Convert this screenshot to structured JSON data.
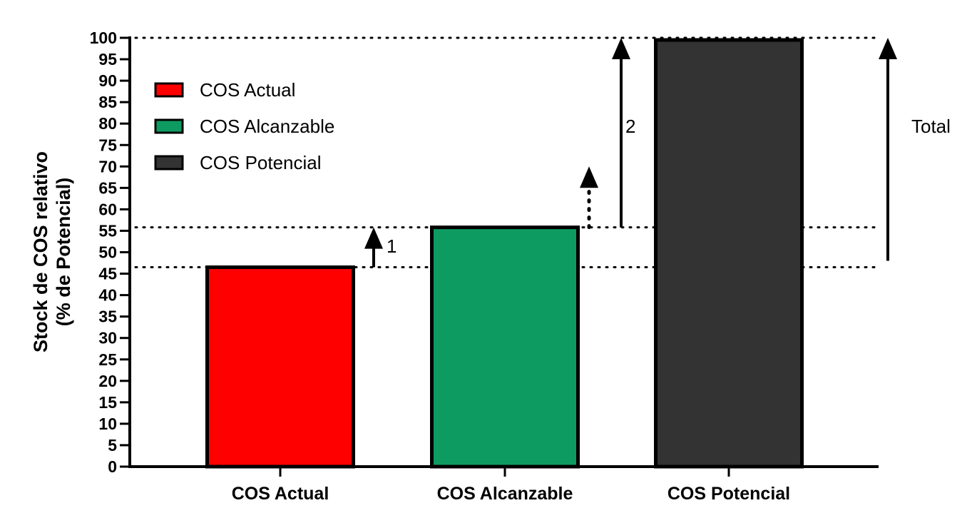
{
  "chart_data": {
    "type": "bar",
    "categories": [
      "COS Actual",
      "COS Alcanzable",
      "COS Potencial"
    ],
    "values": [
      46.5,
      55.8,
      99.5
    ],
    "colors": [
      "#ff0000",
      "#0e9b62",
      "#333333"
    ],
    "ylabel_lines": [
      "Stock de COS relativo",
      "(% de Potencial)"
    ],
    "ylim": [
      0,
      100
    ],
    "y_ticks": [
      "0",
      "5",
      "10",
      "15",
      "20",
      "25",
      "30",
      "35",
      "40",
      "45",
      "50",
      "55",
      "60",
      "65",
      "70",
      "75",
      "80",
      "85",
      "90",
      "95",
      "100"
    ],
    "legend": {
      "placement": "top-left",
      "entries": [
        {
          "label": "COS Actual",
          "color": "#ff0000"
        },
        {
          "label": "COS Alcanzable",
          "color": "#0e9b62"
        },
        {
          "label": "COS Potencial",
          "color": "#333333"
        }
      ]
    },
    "reference_lines": [
      {
        "y": 46.5,
        "style": "dotted"
      },
      {
        "y": 55.8,
        "style": "dotted"
      },
      {
        "y": 100,
        "style": "dotted"
      }
    ],
    "annotations": [
      {
        "label": "1",
        "arrow_from": 46.5,
        "arrow_to": 55.8,
        "style": "solid",
        "between": [
          0,
          1
        ]
      },
      {
        "label": "",
        "arrow_from": 55.8,
        "arrow_to": 70,
        "style": "dotted",
        "between": [
          1,
          2
        ]
      },
      {
        "label": "2",
        "arrow_from": 55.8,
        "arrow_to": 100,
        "style": "solid",
        "between": [
          1,
          2
        ]
      },
      {
        "label": "Total",
        "arrow_from": 48,
        "arrow_to": 100,
        "style": "solid",
        "between": [
          2,
          3
        ]
      }
    ]
  }
}
